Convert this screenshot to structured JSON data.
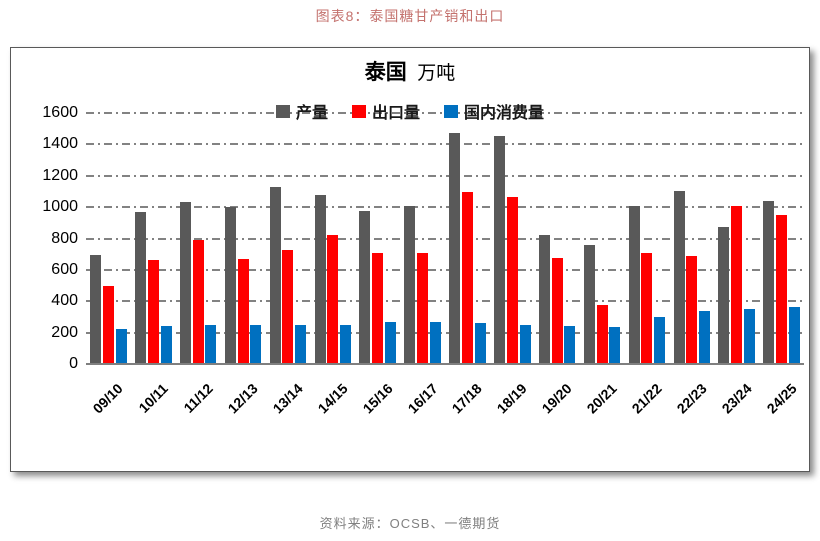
{
  "header": {
    "caption": "图表8：泰国糖甘产销和出口"
  },
  "chart": {
    "title_main": "泰国",
    "title_unit": "万吨"
  },
  "footer": {
    "source": "资料来源：OCSB、一德期货"
  },
  "chart_data": {
    "type": "bar",
    "title": "泰国 万吨",
    "xlabel": "",
    "ylabel": "万吨",
    "ylim": [
      0,
      1600
    ],
    "ytick_step": 200,
    "grid": "horizontal dash-dot",
    "legend_position": "top-center",
    "categories": [
      "09/10",
      "10/11",
      "11/12",
      "12/13",
      "13/14",
      "14/15",
      "15/16",
      "16/17",
      "17/18",
      "18/19",
      "19/20",
      "20/21",
      "21/22",
      "22/23",
      "23/24",
      "24/25"
    ],
    "series": [
      {
        "name": "产量",
        "key": "production",
        "color": "#595959",
        "values": [
          695,
          970,
          1030,
          1000,
          1130,
          1080,
          975,
          1005,
          1470,
          1455,
          825,
          760,
          1010,
          1105,
          875,
          1040
        ]
      },
      {
        "name": "出口量",
        "key": "exports",
        "color": "#ff0000",
        "values": [
          495,
          665,
          790,
          670,
          725,
          825,
          710,
          710,
          1095,
          1065,
          675,
          375,
          705,
          690,
          1005,
          950
        ]
      },
      {
        "name": "国内消费量",
        "key": "domestic-consumption",
        "color": "#0070c0",
        "values": [
          225,
          240,
          250,
          250,
          250,
          250,
          265,
          270,
          260,
          250,
          240,
          235,
          300,
          335,
          350,
          365
        ]
      }
    ]
  }
}
